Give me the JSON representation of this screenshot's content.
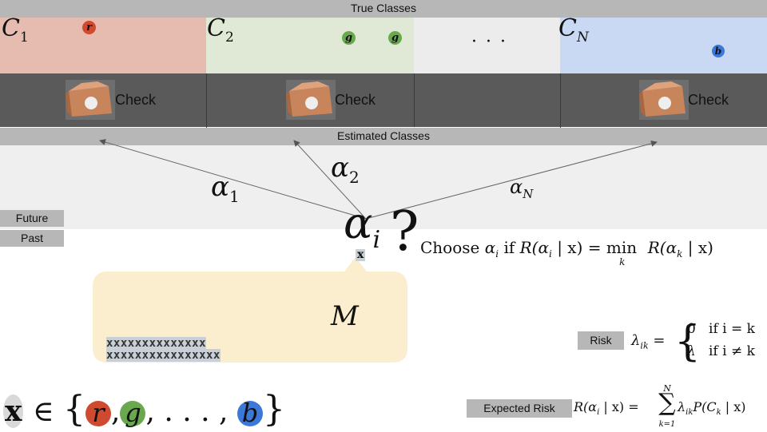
{
  "header": {
    "true_classes": "True Classes",
    "estimated_classes": "Estimated Classes"
  },
  "classes": [
    {
      "label": "C",
      "sub": "1",
      "color": "#e6bcb1",
      "items": [
        "r"
      ],
      "item_color": "#cf4a2e"
    },
    {
      "label": "C",
      "sub": "2",
      "color": "#dfe9d6",
      "items": [
        "g",
        "g"
      ],
      "item_color": "#6aa84f"
    },
    {
      "label": "· · ·",
      "color": "#ececec"
    },
    {
      "label": "C",
      "sub": "N",
      "color": "#c9d9f4",
      "items": [
        "b"
      ],
      "item_color": "#3c78d8"
    }
  ],
  "check_label": "Check",
  "actions": [
    {
      "label": "α",
      "sub": "1"
    },
    {
      "label": "α",
      "sub": "2"
    },
    {
      "label": "α",
      "sub": "N"
    }
  ],
  "timeline": {
    "future": "Future",
    "past": "Past"
  },
  "decision": {
    "alpha": "α",
    "sub": "i",
    "question": "?",
    "x": "x"
  },
  "choose_rule": {
    "prefix": "Choose",
    "text": "α",
    "text_sub": "i",
    "if": "if",
    "lhs": "R(α",
    "lhs_sub": "i",
    "mid": " | x) = min",
    "min_sub": "k",
    "rhs": " R(α",
    "rhs_sub": "k",
    "end": " | x)"
  },
  "model": {
    "label": "M",
    "row1": "xxxxxxxxxxxxxx",
    "row2": "xxxxxxxxxxxxxxxx"
  },
  "risk": {
    "label": "Risk",
    "lambda": "λ",
    "lambda_sub": "ik",
    "eq": "=",
    "case1_val": "0",
    "case1_cond": "if i = k",
    "case2_val": "λ",
    "case2_cond": "if i ≠ k"
  },
  "expected_risk": {
    "label": "Expected Risk",
    "lhs": "R(α",
    "lhs_sub": "i",
    "lhs_end": " | x) =",
    "sum_top": "N",
    "sum_sym": "∑",
    "sum_bot": "k=1",
    "term": "λ",
    "term_sub": "ik",
    "term_end": "P(C",
    "term_sub2": "k",
    "term_close": " | x)"
  },
  "set_def": {
    "x": "x",
    "in": "∈",
    "open": "{",
    "r": "r",
    "g": "g",
    "dots": ", . . . ,",
    "b": "b",
    "close": "}",
    "comma": ","
  }
}
